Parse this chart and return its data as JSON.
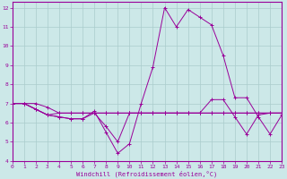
{
  "xlabel": "Windchill (Refroidissement éolien,°C)",
  "background_color": "#cce8e8",
  "grid_color": "#aacccc",
  "line_color": "#990099",
  "xlim": [
    0,
    23
  ],
  "ylim": [
    4,
    12.3
  ],
  "xticks": [
    0,
    1,
    2,
    3,
    4,
    5,
    6,
    7,
    8,
    9,
    10,
    11,
    12,
    13,
    14,
    15,
    16,
    17,
    18,
    19,
    20,
    21,
    22,
    23
  ],
  "yticks": [
    4,
    5,
    6,
    7,
    8,
    9,
    10,
    11,
    12
  ],
  "series": [
    [
      7.0,
      7.0,
      6.7,
      6.4,
      6.3,
      6.2,
      6.2,
      6.6,
      5.5,
      4.4,
      4.9,
      7.0,
      8.9,
      12.0,
      11.0,
      11.9,
      11.5,
      11.1,
      9.5,
      7.3,
      7.3,
      6.3,
      5.4,
      6.4
    ],
    [
      7.0,
      7.0,
      6.7,
      6.4,
      6.5,
      6.5,
      6.5,
      6.5,
      6.5,
      6.5,
      6.5,
      6.5,
      6.5,
      6.5,
      6.5,
      6.5,
      6.5,
      6.5,
      6.5,
      6.5,
      6.5,
      6.5,
      6.5,
      6.5
    ],
    [
      7.0,
      7.0,
      6.7,
      6.4,
      6.3,
      6.2,
      6.2,
      6.5,
      5.8,
      5.0,
      6.5,
      6.5,
      6.5,
      6.5,
      6.5,
      6.5,
      6.5,
      7.2,
      7.2,
      6.3,
      5.4,
      6.4,
      6.5,
      6.5
    ],
    [
      7.0,
      7.0,
      7.0,
      6.8,
      6.5,
      6.5,
      6.5,
      6.5,
      6.5,
      6.5,
      6.5,
      6.5,
      6.5,
      6.5,
      6.5,
      6.5,
      6.5,
      6.5,
      6.5,
      6.5,
      6.5,
      6.5,
      6.5,
      6.5
    ]
  ]
}
